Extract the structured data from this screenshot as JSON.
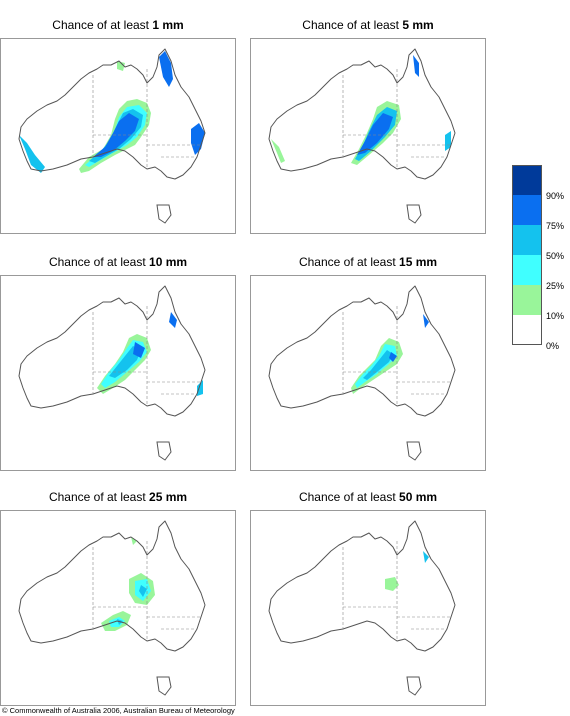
{
  "panels": [
    {
      "prefix": "Chance of at least ",
      "amount": "1 mm"
    },
    {
      "prefix": "Chance of at least ",
      "amount": "5 mm"
    },
    {
      "prefix": "Chance of at least ",
      "amount": "10 mm"
    },
    {
      "prefix": "Chance of at least ",
      "amount": "15 mm"
    },
    {
      "prefix": "Chance of at least ",
      "amount": "25 mm"
    },
    {
      "prefix": "Chance of at least ",
      "amount": "50 mm"
    }
  ],
  "legend": {
    "labels": [
      "90%",
      "75%",
      "50%",
      "25%",
      "10%",
      "0%"
    ],
    "colors": [
      "#003a9a",
      "#0a6ff0",
      "#14c2ee",
      "#40ffff",
      "#99f59a",
      "#ffffff"
    ]
  },
  "footer": {
    "copyright": "© Commonwealth of Australia 2006, Australian Bureau of Meteorology"
  }
}
